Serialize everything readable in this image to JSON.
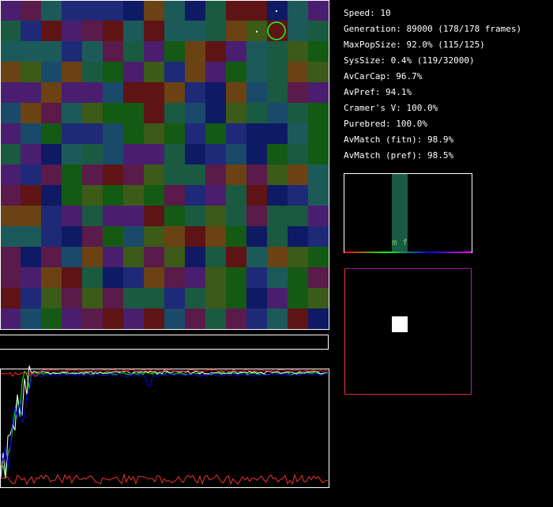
{
  "stats": [
    "Speed: 10",
    "Generation: 89000 (178/178 frames)",
    "MaxPopSize: 92.0% (115/125)",
    "SysSize: 0.4% (119/32000)",
    "AvCarCap: 96.7%",
    "AvPref: 94.1%",
    "Cramer's V: 100.0%",
    "Purebred: 100.0%",
    "AvMatch (fitn): 98.9%",
    "AvMatch (pref): 98.5%"
  ],
  "histogram": {
    "label": "m f"
  }
}
